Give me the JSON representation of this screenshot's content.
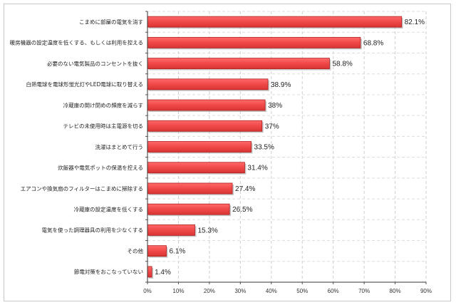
{
  "chart_data": {
    "type": "bar",
    "orientation": "horizontal",
    "categories": [
      "こまめに部屋の電気を消す",
      "暖房機器の設定温度を低くする、もしくは利用を控える",
      "必要のない電気製品のコンセントを抜く",
      "白熱電球を電球形蛍光灯やLED電球に取り替える",
      "冷蔵庫の開け閉めの頻度を減らす",
      "テレビの未使用時は主電源を切る",
      "洗濯はまとめて行う",
      "炊飯器や電気ポットの保温を控える",
      "エアコンや換気扇のフィルターはこまめに掃除する",
      "冷蔵庫の設定温度を低くする",
      "電気を使った調理器具の利用を少なくする",
      "その他",
      "節電対策をおこなっていない"
    ],
    "values": [
      82.1,
      68.8,
      58.8,
      38.9,
      38,
      37,
      33.5,
      31.4,
      27.4,
      26.5,
      15.3,
      6.1,
      1.4
    ],
    "value_labels": [
      "82.1%",
      "68.8%",
      "58.8%",
      "38.9%",
      "38%",
      "37%",
      "33.5%",
      "31.4%",
      "27.4%",
      "26.5%",
      "15.3%",
      "6.1%",
      "1.4%"
    ],
    "x_ticks": [
      "0%",
      "10%",
      "20%",
      "30%",
      "40%",
      "50%",
      "60%",
      "70%",
      "80%",
      "90%"
    ],
    "xlim": [
      0,
      90
    ],
    "grid": true,
    "bar_color": "#f04848",
    "bar_edge": "#b02020",
    "title": "",
    "xlabel": "",
    "ylabel": ""
  }
}
